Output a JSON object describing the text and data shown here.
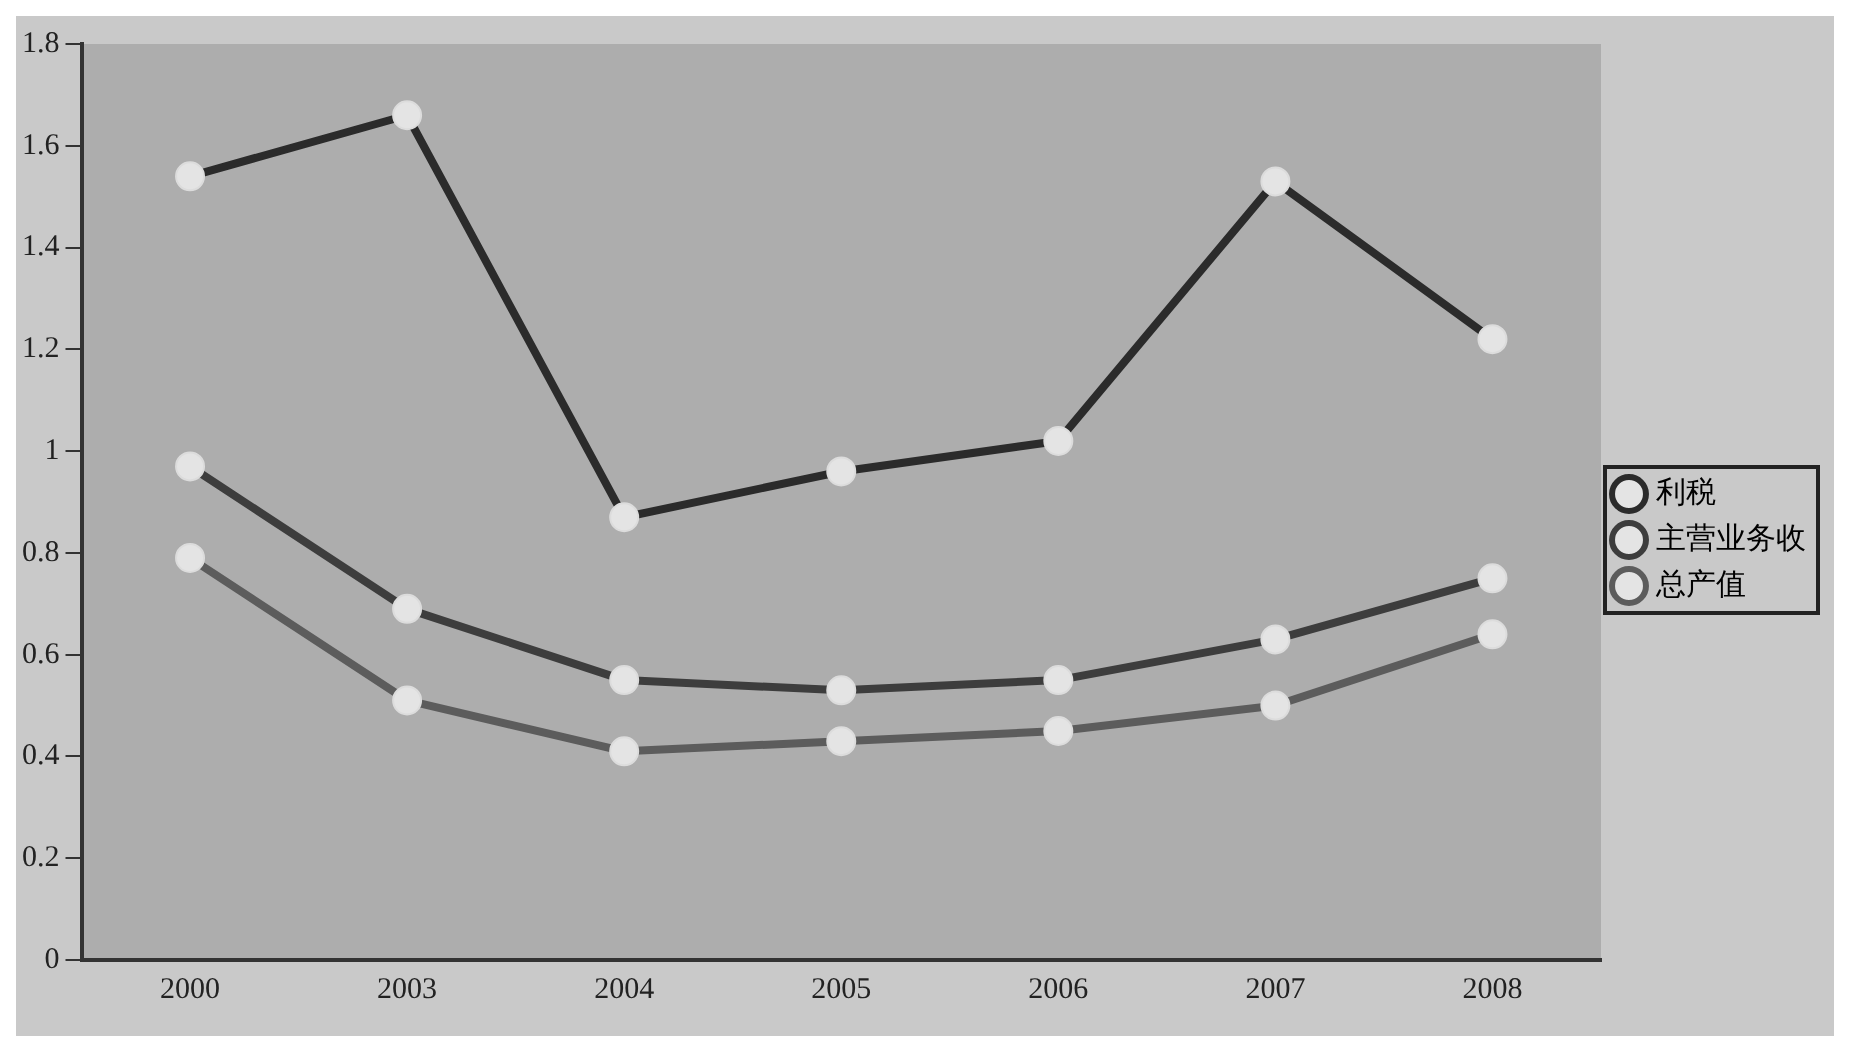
{
  "chart_data": {
    "type": "line",
    "categories": [
      "2000",
      "2003",
      "2004",
      "2005",
      "2006",
      "2007",
      "2008"
    ],
    "series": [
      {
        "name": "利税",
        "color": "#2b2b2b",
        "values": [
          1.54,
          1.66,
          0.87,
          0.96,
          1.02,
          1.53,
          1.22
        ]
      },
      {
        "name": "主营业务收",
        "color": "#3d3d3d",
        "values": [
          0.97,
          0.69,
          0.55,
          0.53,
          0.55,
          0.63,
          0.75
        ]
      },
      {
        "name": "总产值",
        "color": "#5c5c5c",
        "values": [
          0.79,
          0.51,
          0.41,
          0.43,
          0.45,
          0.5,
          0.64
        ]
      }
    ],
    "ylim": [
      0,
      1.8
    ],
    "yticks": [
      0,
      0.2,
      0.4,
      0.6,
      0.8,
      1,
      1.2,
      1.4,
      1.6,
      1.8
    ],
    "grid": false,
    "legend": "right",
    "marker": "circle",
    "line_style": "solid"
  }
}
